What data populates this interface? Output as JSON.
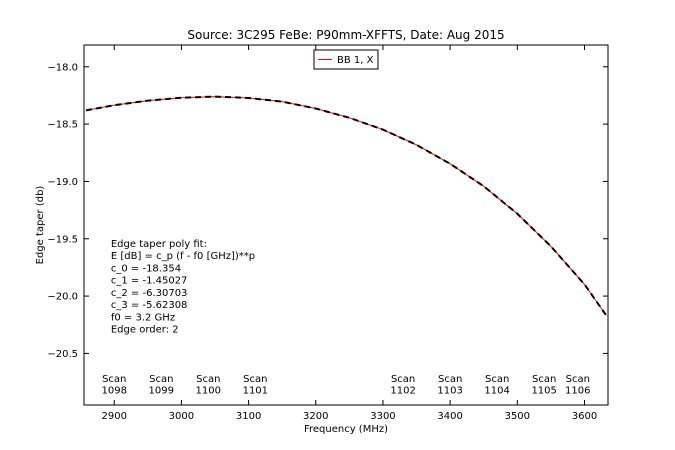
{
  "chart_data": {
    "type": "line",
    "title": "Source: 3C295 FeBe: P90mm-XFFTS, Date: Aug 2015",
    "xlabel": "Frequency (MHz)",
    "ylabel": "Edge taper (db)",
    "xlim": [
      2855,
      3635
    ],
    "ylim": [
      -20.95,
      -17.81
    ],
    "xticks": [
      2900,
      3000,
      3100,
      3200,
      3300,
      3400,
      3500,
      3600
    ],
    "yticks": [
      -18.0,
      -18.5,
      -19.0,
      -19.5,
      -20.0,
      -20.5
    ],
    "ytick_labels": [
      "−18.0",
      "−18.5",
      "−19.0",
      "−19.5",
      "−20.0",
      "−20.5"
    ],
    "grid": false,
    "legend_position": "top-center",
    "series": [
      {
        "name": "BB 1, X",
        "color": "#ff0000",
        "style": "solid",
        "x": [
          2858,
          2900,
          2950,
          3000,
          3050,
          3100,
          3150,
          3200,
          3250,
          3300,
          3350,
          3400,
          3450,
          3500,
          3550,
          3600,
          3632
        ],
        "y": [
          -18.38,
          -18.335,
          -18.295,
          -18.27,
          -18.26,
          -18.272,
          -18.304,
          -18.364,
          -18.445,
          -18.548,
          -18.681,
          -18.846,
          -19.042,
          -19.282,
          -19.566,
          -19.898,
          -20.165
        ]
      },
      {
        "name": "",
        "color": "#000000",
        "style": "dashed",
        "x": [
          2858,
          2900,
          2950,
          3000,
          3050,
          3100,
          3150,
          3200,
          3250,
          3300,
          3350,
          3400,
          3450,
          3500,
          3550,
          3600,
          3632
        ],
        "y": [
          -18.38,
          -18.335,
          -18.295,
          -18.27,
          -18.26,
          -18.272,
          -18.304,
          -18.364,
          -18.445,
          -18.548,
          -18.681,
          -18.846,
          -19.042,
          -19.282,
          -19.566,
          -19.898,
          -20.165
        ]
      }
    ],
    "fit_annotation": [
      "Edge taper poly fit:",
      "E [dB] = c_p (f - f0 [GHz])**p",
      "c_0 = -18.354",
      "c_1 = -1.45027",
      "c_2 = -6.30703",
      "c_3 = -5.62308",
      "f0 = 3.2 GHz",
      "Edge order: 2"
    ],
    "scan_labels": [
      {
        "x": 2900,
        "line1": "Scan",
        "line2": "1098"
      },
      {
        "x": 2970,
        "line1": "Scan",
        "line2": "1099"
      },
      {
        "x": 3040,
        "line1": "Scan",
        "line2": "1100"
      },
      {
        "x": 3110,
        "line1": "Scan",
        "line2": "1101"
      },
      {
        "x": 3330,
        "line1": "Scan",
        "line2": "1102"
      },
      {
        "x": 3400,
        "line1": "Scan",
        "line2": "1103"
      },
      {
        "x": 3470,
        "line1": "Scan",
        "line2": "1104"
      },
      {
        "x": 3540,
        "line1": "Scan",
        "line2": "1105"
      },
      {
        "x": 3590,
        "line1": "Scan",
        "line2": "1106"
      }
    ],
    "scan_label_y": [
      -20.75,
      -20.85
    ],
    "fit_annotation_x": 2895,
    "fit_annotation_y_start": -19.57,
    "fit_annotation_y_step": 0.107
  }
}
